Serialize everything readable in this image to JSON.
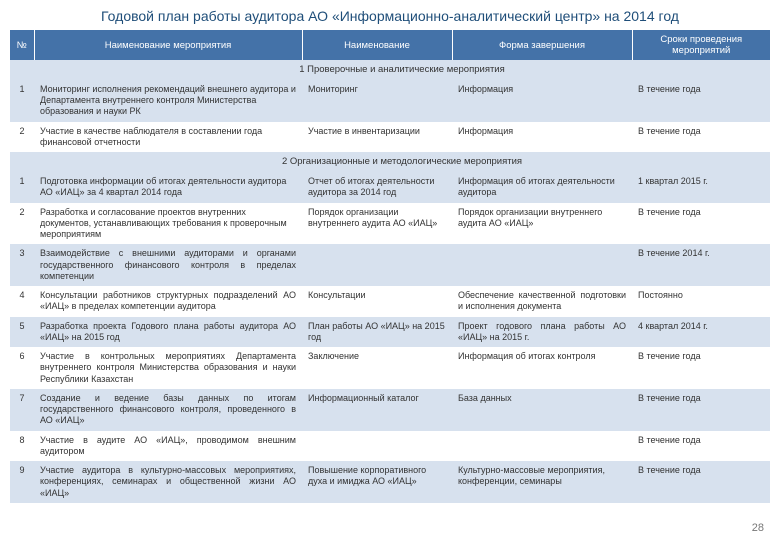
{
  "title": "Годовой план работы   аудитора АО «Информационно-аналитический центр» на 2014 год",
  "page_number": "28",
  "headers": {
    "num": "№",
    "activity": "Наименование мероприятия",
    "name": "Наименование",
    "form": "Форма завершения",
    "timing": "Сроки проведения мероприятий"
  },
  "sections": {
    "s1": "1  Проверочные и аналитические мероприятия",
    "s2": "2  Организационные и методологические мероприятия"
  },
  "rows": {
    "r1": {
      "n": "1",
      "act": "Мониторинг исполнения рекомендаций внешнего аудитора и Департамента внутреннего контроля Министерства образования и науки РК",
      "name": "Мониторинг",
      "form": "Информация",
      "time": "В течение года"
    },
    "r2": {
      "n": "2",
      "act": "Участие в качестве наблюдателя в составлении года финансовой отчетности",
      "name": "Участие в инвентаризации",
      "form": "Информация",
      "time": "В течение года"
    },
    "r3": {
      "n": "1",
      "act": "Подготовка информации об итогах деятельности аудитора АО «ИАЦ» за 4 квартал 2014 года",
      "name": "Отчет об итогах деятельности аудитора за 2014 год",
      "form": "Информация об итогах деятельности аудитора",
      "time": "1 квартал 2015 г."
    },
    "r4": {
      "n": "2",
      "act": "Разработка и согласование проектов внутренних документов, устанавливающих требования к проверочным мероприятиям",
      "name": "Порядок организации внутреннего аудита АО «ИАЦ»",
      "form": "Порядок организации внутреннего аудита АО «ИАЦ»",
      "time": "В течение года"
    },
    "r5": {
      "n": "3",
      "act": "Взаимодействие с внешними аудиторами и органами государственного финансового контроля в пределах компетенции",
      "name": "",
      "form": "",
      "time": "В течение 2014 г."
    },
    "r6": {
      "n": "4",
      "act": "Консультации работников структурных подразделений АО «ИАЦ» в пределах компетенции аудитора",
      "name": "Консультации",
      "form": "Обеспечение качественной подготовки и исполнения документа",
      "time": "Постоянно"
    },
    "r7": {
      "n": "5",
      "act": "Разработка проекта Годового плана работы аудитора АО «ИАЦ» на 2015 год",
      "name": "План работы АО «ИАЦ» на 2015 год",
      "form": "Проект годового плана работы АО «ИАЦ» на 2015 г.",
      "time": "4 квартал 2014 г."
    },
    "r8": {
      "n": "6",
      "act": "Участие в контрольных мероприятиях Департамента внутреннего контроля Министерства образования и науки Республики Казахстан",
      "name": "Заключение",
      "form": "Информация об итогах контроля",
      "time": "В течение года"
    },
    "r9": {
      "n": "7",
      "act": "Создание и ведение базы данных по итогам государственного финансового контроля, проведенного в АО «ИАЦ»",
      "name": "Информационный каталог",
      "form": "База данных",
      "time": "В течение года"
    },
    "r10": {
      "n": "8",
      "act": "Участие в аудите АО «ИАЦ», проводимом внешним аудитором",
      "name": "",
      "form": "",
      "time": "В течение года"
    },
    "r11": {
      "n": "9",
      "act": "Участие аудитора в культурно-массовых мероприятиях, конференциях, семинарах и общественной жизни АО «ИАЦ»",
      "name": "Повышение корпоративного духа и имиджа АО «ИАЦ»",
      "form": "Культурно-массовые мероприятия, конференции, семинары",
      "time": "В течение года"
    }
  }
}
